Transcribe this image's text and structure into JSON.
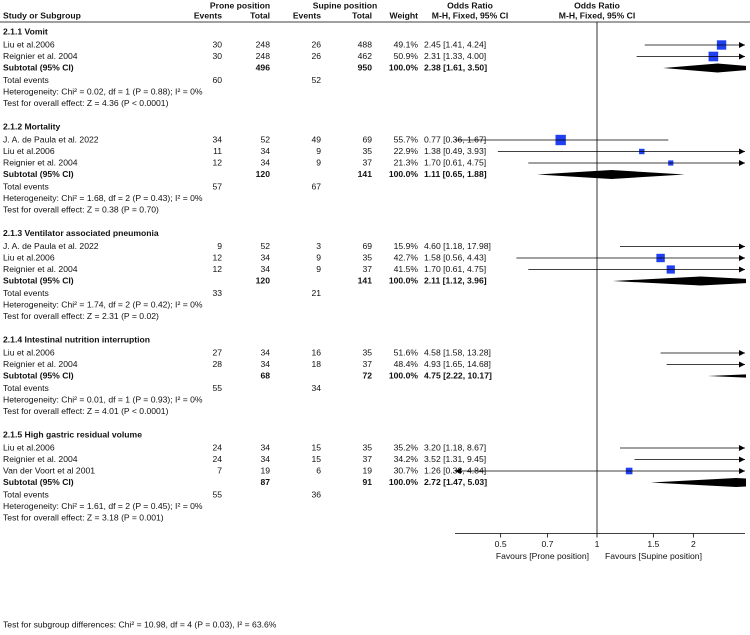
{
  "header": {
    "study": "Study or Subgroup",
    "prone": "Prone position",
    "supine": "Supine position",
    "events1": "Events",
    "total1": "Total",
    "events2": "Events",
    "total2": "Total",
    "weight": "Weight",
    "or_col": "Odds Ratio",
    "or_method": "M-H, Fixed, 95% CI",
    "plot_title": "Odds Ratio",
    "plot_method": "M-H, Fixed, 95% CI"
  },
  "subgroups": [
    {
      "title": "2.1.1 Vomit",
      "studies": [
        {
          "name": "Liu et al.2006",
          "e1": 30,
          "n1": 248,
          "e2": 26,
          "n2": 488,
          "weight": 49.1,
          "weight_label": "49.1%",
          "or": 2.45,
          "lo": 1.41,
          "hi": 4.24,
          "ci_label": "2.45 [1.41, 4.24]"
        },
        {
          "name": "Reignier et al. 2004",
          "e1": 30,
          "n1": 248,
          "e2": 26,
          "n2": 462,
          "weight": 50.9,
          "weight_label": "50.9%",
          "or": 2.31,
          "lo": 1.33,
          "hi": 4.0,
          "ci_label": "2.31 [1.33, 4.00]"
        }
      ],
      "subtotal": {
        "label": "Subtotal (95% CI)",
        "n1": 496,
        "n2": 950,
        "weight_label": "100.0%",
        "or": 2.38,
        "lo": 1.61,
        "hi": 3.5,
        "ci_label": "2.38 [1.61, 3.50]"
      },
      "total_events": {
        "label": "Total events",
        "e1": 60,
        "e2": 52
      },
      "heterogeneity": "Heterogeneity: Chi² = 0.02, df = 1 (P = 0.88); I² = 0%",
      "overall": "Test for overall effect: Z = 4.36 (P < 0.0001)"
    },
    {
      "title": "2.1.2 Mortality",
      "studies": [
        {
          "name": "J. A. de Paula et al. 2022",
          "e1": 34,
          "n1": 52,
          "e2": 49,
          "n2": 69,
          "weight": 55.7,
          "weight_label": "55.7%",
          "or": 0.77,
          "lo": 0.36,
          "hi": 1.67,
          "ci_label": "0.77 [0.36, 1.67]"
        },
        {
          "name": "Liu et al.2006",
          "e1": 11,
          "n1": 34,
          "e2": 9,
          "n2": 35,
          "weight": 22.9,
          "weight_label": "22.9%",
          "or": 1.38,
          "lo": 0.49,
          "hi": 3.93,
          "ci_label": "1.38 [0.49, 3.93]"
        },
        {
          "name": "Reignier et al. 2004",
          "e1": 12,
          "n1": 34,
          "e2": 9,
          "n2": 37,
          "weight": 21.3,
          "weight_label": "21.3%",
          "or": 1.7,
          "lo": 0.61,
          "hi": 4.75,
          "ci_label": "1.70 [0.61, 4.75]"
        }
      ],
      "subtotal": {
        "label": "Subtotal (95% CI)",
        "n1": 120,
        "n2": 141,
        "weight_label": "100.0%",
        "or": 1.11,
        "lo": 0.65,
        "hi": 1.88,
        "ci_label": "1.11 [0.65, 1.88]"
      },
      "total_events": {
        "label": "Total events",
        "e1": 57,
        "e2": 67
      },
      "heterogeneity": "Heterogeneity: Chi² = 1.68, df = 2 (P = 0.43); I² = 0%",
      "overall": "Test for overall effect: Z = 0.38 (P = 0.70)"
    },
    {
      "title": "2.1.3 Ventilator associated pneumonia",
      "studies": [
        {
          "name": "J. A. de Paula et al. 2022",
          "e1": 9,
          "n1": 52,
          "e2": 3,
          "n2": 69,
          "weight": 15.9,
          "weight_label": "15.9%",
          "or": 4.6,
          "lo": 1.18,
          "hi": 17.98,
          "ci_label": "4.60 [1.18, 17.98]"
        },
        {
          "name": "Liu et al.2006",
          "e1": 12,
          "n1": 34,
          "e2": 9,
          "n2": 35,
          "weight": 42.7,
          "weight_label": "42.7%",
          "or": 1.58,
          "lo": 0.56,
          "hi": 4.43,
          "ci_label": "1.58 [0.56, 4.43]"
        },
        {
          "name": "Reignier et al. 2004",
          "e1": 12,
          "n1": 34,
          "e2": 9,
          "n2": 37,
          "weight": 41.5,
          "weight_label": "41.5%",
          "or": 1.7,
          "lo": 0.61,
          "hi": 4.75,
          "ci_label": "1.70 [0.61, 4.75]"
        }
      ],
      "subtotal": {
        "label": "Subtotal (95% CI)",
        "n1": 120,
        "n2": 141,
        "weight_label": "100.0%",
        "or": 2.11,
        "lo": 1.12,
        "hi": 3.96,
        "ci_label": "2.11 [1.12, 3.96]"
      },
      "total_events": {
        "label": "Total events",
        "e1": 33,
        "e2": 21
      },
      "heterogeneity": "Heterogeneity: Chi² = 1.74, df = 2 (P = 0.42); I² = 0%",
      "overall": "Test for overall effect: Z = 2.31 (P = 0.02)"
    },
    {
      "title": "2.1.4 Intestinal nutrition interruption",
      "studies": [
        {
          "name": "Liu et al.2006",
          "e1": 27,
          "n1": 34,
          "e2": 16,
          "n2": 35,
          "weight": 51.6,
          "weight_label": "51.6%",
          "or": 4.58,
          "lo": 1.58,
          "hi": 13.28,
          "ci_label": "4.58 [1.58, 13.28]"
        },
        {
          "name": "Reignier et al. 2004",
          "e1": 28,
          "n1": 34,
          "e2": 18,
          "n2": 37,
          "weight": 48.4,
          "weight_label": "48.4%",
          "or": 4.93,
          "lo": 1.65,
          "hi": 14.68,
          "ci_label": "4.93 [1.65, 14.68]"
        }
      ],
      "subtotal": {
        "label": "Subtotal (95% CI)",
        "n1": 68,
        "n2": 72,
        "weight_label": "100.0%",
        "or": 4.75,
        "lo": 2.22,
        "hi": 10.17,
        "ci_label": "4.75 [2.22, 10.17]"
      },
      "total_events": {
        "label": "Total events",
        "e1": 55,
        "e2": 34
      },
      "heterogeneity": "Heterogeneity: Chi² = 0.01, df = 1 (P = 0.93); I² = 0%",
      "overall": "Test for overall effect: Z = 4.01 (P < 0.0001)"
    },
    {
      "title": "2.1.5 High gastric residual volume",
      "studies": [
        {
          "name": "Liu et al.2006",
          "e1": 24,
          "n1": 34,
          "e2": 15,
          "n2": 35,
          "weight": 35.2,
          "weight_label": "35.2%",
          "or": 3.2,
          "lo": 1.18,
          "hi": 8.67,
          "ci_label": "3.20 [1.18, 8.67]"
        },
        {
          "name": "Reignier et al. 2004",
          "e1": 24,
          "n1": 34,
          "e2": 15,
          "n2": 37,
          "weight": 34.2,
          "weight_label": "34.2%",
          "or": 3.52,
          "lo": 1.31,
          "hi": 9.45,
          "ci_label": "3.52 [1.31, 9.45]"
        },
        {
          "name": "Van der Voort  et al 2001",
          "e1": 7,
          "n1": 19,
          "e2": 6,
          "n2": 19,
          "weight": 30.7,
          "weight_label": "30.7%",
          "or": 1.26,
          "lo": 0.33,
          "hi": 4.84,
          "ci_label": "1.26 [0.33, 4.84]"
        }
      ],
      "subtotal": {
        "label": "Subtotal (95% CI)",
        "n1": 87,
        "n2": 91,
        "weight_label": "100.0%",
        "or": 2.72,
        "lo": 1.47,
        "hi": 5.03,
        "ci_label": "2.72 [1.47, 5.03]"
      },
      "total_events": {
        "label": "Total events",
        "e1": 55,
        "e2": 36
      },
      "heterogeneity": "Heterogeneity: Chi² = 1.61, df = 2 (P = 0.45); I² = 0%",
      "overall": "Test for overall effect: Z = 3.18 (P = 0.001)"
    }
  ],
  "axis": {
    "log": true,
    "xlim": [
      0.36,
      2.9
    ],
    "xticks": [
      0.5,
      0.7,
      1,
      1.5,
      2
    ],
    "reference": 1,
    "favours_left": "Favours [Prone position]",
    "favours_right": "Favours [Supine position]",
    "square_color": "#1f3ff0"
  },
  "footer": "Test for subgroup differences: Chi² = 10.98, df = 4 (P = 0.03), I² = 63.6%"
}
